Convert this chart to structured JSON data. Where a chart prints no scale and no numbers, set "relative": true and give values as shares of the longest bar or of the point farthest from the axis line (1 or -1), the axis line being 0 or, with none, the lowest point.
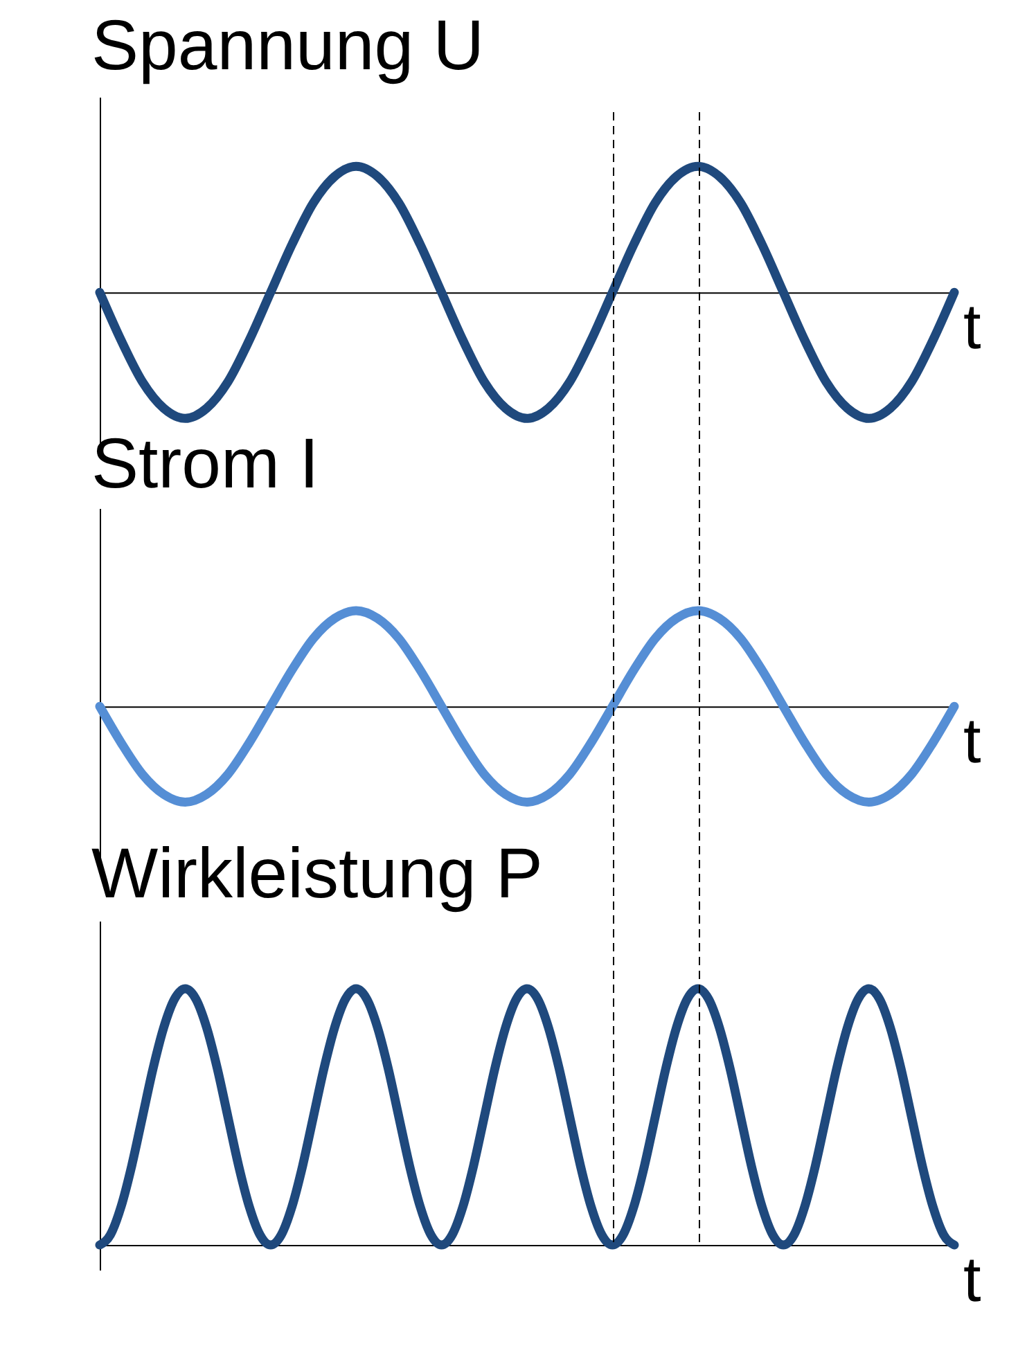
{
  "chart_data": [
    {
      "type": "line",
      "title": "Spannung U",
      "xlabel": "t",
      "relative": true,
      "color": "#1f497d",
      "categories": [
        null,
        null,
        null,
        null,
        null,
        null,
        null,
        null,
        null,
        null,
        null,
        null,
        null,
        null,
        null,
        null,
        null,
        null,
        null,
        null,
        null,
        null,
        null,
        null,
        null,
        null,
        null,
        null,
        null,
        null,
        null,
        null,
        null,
        null,
        null,
        null,
        null,
        null,
        null,
        null,
        null
      ],
      "values": [
        0,
        -0.38,
        -0.71,
        -0.92,
        -1,
        -0.92,
        -0.71,
        -0.38,
        0,
        0.38,
        0.71,
        0.92,
        1,
        0.92,
        0.71,
        0.38,
        0,
        -0.38,
        -0.71,
        -0.92,
        -1,
        -0.92,
        -0.71,
        -0.38,
        0,
        0.38,
        0.71,
        0.92,
        1,
        0.92,
        0.71,
        0.38,
        0,
        -0.38,
        -0.71,
        -0.92,
        -1,
        -0.92,
        -0.71,
        -0.38,
        0
      ]
    },
    {
      "type": "line",
      "title": "Strom I",
      "xlabel": "t",
      "relative": true,
      "color": "#558ed5",
      "categories": [
        null,
        null,
        null,
        null,
        null,
        null,
        null,
        null,
        null,
        null,
        null,
        null,
        null,
        null,
        null,
        null,
        null,
        null,
        null,
        null,
        null,
        null,
        null,
        null,
        null,
        null,
        null,
        null,
        null,
        null,
        null,
        null,
        null,
        null,
        null,
        null,
        null,
        null,
        null,
        null,
        null
      ],
      "values": [
        0,
        -0.38,
        -0.71,
        -0.92,
        -1,
        -0.92,
        -0.71,
        -0.38,
        0,
        0.38,
        0.71,
        0.92,
        1,
        0.92,
        0.71,
        0.38,
        0,
        -0.38,
        -0.71,
        -0.92,
        -1,
        -0.92,
        -0.71,
        -0.38,
        0,
        0.38,
        0.71,
        0.92,
        1,
        0.92,
        0.71,
        0.38,
        0,
        -0.38,
        -0.71,
        -0.92,
        -1,
        -0.92,
        -0.71,
        -0.38,
        0
      ]
    },
    {
      "type": "line",
      "title": "Wirkleistung P",
      "xlabel": "t",
      "relative": true,
      "color": "#1f497d",
      "categories": [
        null,
        null,
        null,
        null,
        null,
        null,
        null,
        null,
        null,
        null,
        null,
        null,
        null,
        null,
        null,
        null,
        null,
        null,
        null,
        null,
        null,
        null,
        null,
        null,
        null,
        null,
        null,
        null,
        null,
        null,
        null,
        null,
        null,
        null,
        null,
        null,
        null,
        null,
        null,
        null,
        null,
        null,
        null,
        null,
        null,
        null,
        null,
        null,
        null,
        null,
        null,
        null,
        null,
        null,
        null,
        null,
        null,
        null,
        null,
        null,
        null,
        null,
        null,
        null,
        null,
        null,
        null,
        null,
        null,
        null,
        null,
        null,
        null,
        null,
        null,
        null,
        null,
        null,
        null,
        null,
        null
      ],
      "values": [
        0,
        0.04,
        0.15,
        0.31,
        0.5,
        0.69,
        0.85,
        0.96,
        1,
        0.96,
        0.85,
        0.69,
        0.5,
        0.31,
        0.15,
        0.04,
        0,
        0.04,
        0.15,
        0.31,
        0.5,
        0.69,
        0.85,
        0.96,
        1,
        0.96,
        0.85,
        0.69,
        0.5,
        0.31,
        0.15,
        0.04,
        0,
        0.04,
        0.15,
        0.31,
        0.5,
        0.69,
        0.85,
        0.96,
        1,
        0.96,
        0.85,
        0.69,
        0.5,
        0.31,
        0.15,
        0.04,
        0,
        0.04,
        0.15,
        0.31,
        0.5,
        0.69,
        0.85,
        0.96,
        1,
        0.96,
        0.85,
        0.69,
        0.5,
        0.31,
        0.15,
        0.04,
        0,
        0.04,
        0.15,
        0.31,
        0.5,
        0.69,
        0.85,
        0.96,
        1,
        0.96,
        0.85,
        0.69,
        0.5,
        0.31,
        0.15,
        0.04,
        0
      ]
    }
  ]
}
